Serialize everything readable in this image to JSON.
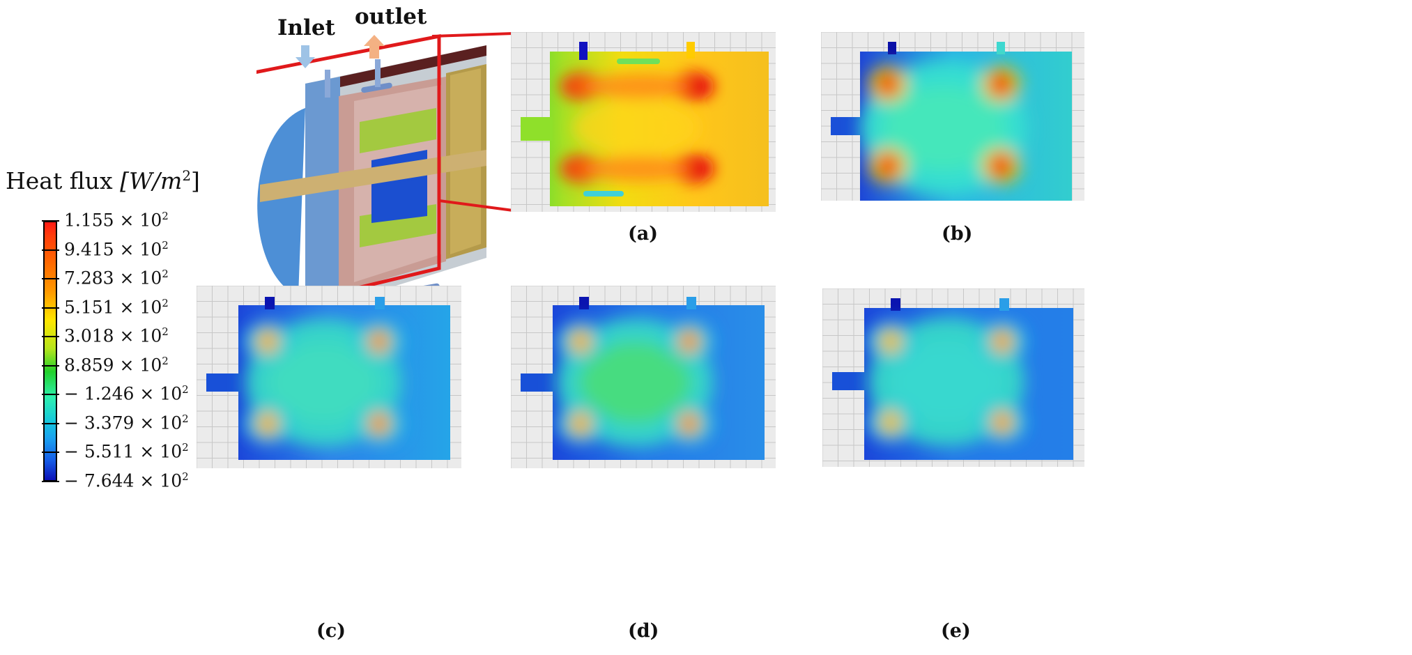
{
  "legend": {
    "title_prefix": "Heat flux ",
    "title_unit": "[W/m",
    "title_exp": "2",
    "title_suffix": "]",
    "labels": [
      {
        "mantissa": "1.155",
        "exp": "2"
      },
      {
        "mantissa": "9.415",
        "exp": "2"
      },
      {
        "mantissa": "7.283",
        "exp": "2"
      },
      {
        "mantissa": "5.151",
        "exp": "2"
      },
      {
        "mantissa": "3.018",
        "exp": "2"
      },
      {
        "mantissa": "8.859",
        "exp": "2"
      },
      {
        "mantissa": "− 1.246",
        "exp": "2"
      },
      {
        "mantissa": "− 3.379",
        "exp": "2"
      },
      {
        "mantissa": "− 5.511",
        "exp": "2"
      },
      {
        "mantissa": "− 7.644",
        "exp": "2"
      }
    ],
    "colors": [
      "#ff1a14",
      "#ff6a00",
      "#ffe600",
      "#b6e51c",
      "#22d12c",
      "#2ef0b0",
      "#16c8dc",
      "#1aa0f0",
      "#1660e8",
      "#0b10b8"
    ]
  },
  "schematic": {
    "inlet_label": "Inlet",
    "outlet_label": "outlet",
    "inlet_arrow_color": "#9ec3e6",
    "outlet_arrow_color": "#f4b183",
    "frame_color": "#e0191b"
  },
  "panels": {
    "a": {
      "caption": "(a)",
      "style": "hot"
    },
    "b": {
      "caption": "(b)",
      "style": "cool-b"
    },
    "c": {
      "caption": "(c)",
      "style": "cool-c"
    },
    "d": {
      "caption": "(d)",
      "style": "cool-d"
    },
    "e": {
      "caption": "(e)",
      "style": "cool-e"
    }
  }
}
